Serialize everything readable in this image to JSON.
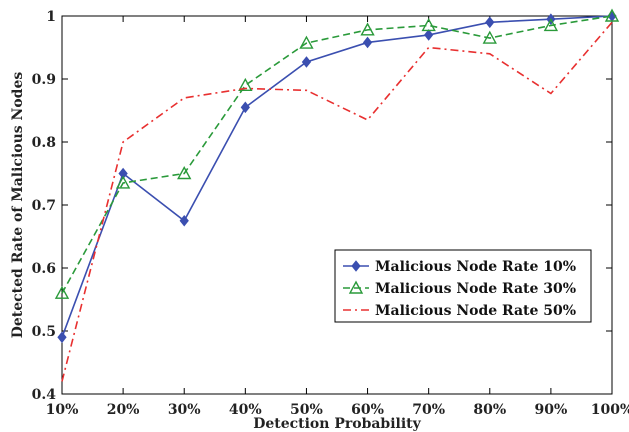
{
  "chart_data": {
    "type": "line",
    "xlabel": "Detection Probability",
    "ylabel": "Detected Rate of Malicious Nodes",
    "categories": [
      "10%",
      "20%",
      "30%",
      "40%",
      "50%",
      "60%",
      "70%",
      "80%",
      "90%",
      "100%"
    ],
    "ylim": [
      0.4,
      1.0
    ],
    "yticks": [
      "0.4",
      "0.5",
      "0.6",
      "0.7",
      "0.8",
      "0.9",
      "1"
    ],
    "ytick_values": [
      0.4,
      0.5,
      0.6,
      0.7,
      0.8,
      0.9,
      1.0
    ],
    "grid": false,
    "legend_position": "lower-right",
    "series": [
      {
        "name": "Malicious Node Rate 10%",
        "values": [
          0.49,
          0.75,
          0.675,
          0.855,
          0.927,
          0.958,
          0.97,
          0.99,
          0.995,
          1.0
        ],
        "color": "#3b4fb0",
        "dash": "solid",
        "marker": "diamond"
      },
      {
        "name": "Malicious Node Rate 30%",
        "values": [
          0.56,
          0.735,
          0.75,
          0.89,
          0.957,
          0.978,
          0.985,
          0.965,
          0.985,
          1.0
        ],
        "color": "#2a9a3a",
        "dash": "dashed",
        "marker": "triangle"
      },
      {
        "name": "Malicious Node Rate 50%",
        "values": [
          0.42,
          0.8,
          0.87,
          0.885,
          0.882,
          0.835,
          0.95,
          0.94,
          0.877,
          0.99
        ],
        "color": "#e83030",
        "dash": "dashdot",
        "marker": "none"
      }
    ]
  }
}
